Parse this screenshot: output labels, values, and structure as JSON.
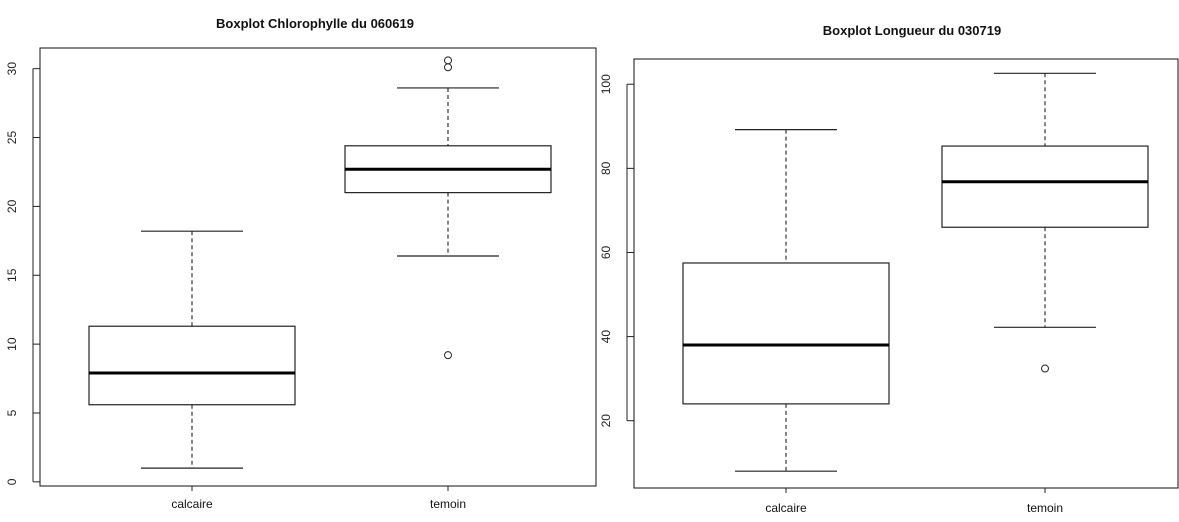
{
  "chart_data": [
    {
      "type": "boxplot",
      "title": "Boxplot Chlorophylle du 060619",
      "categories": [
        "calcaire",
        "temoin"
      ],
      "ylim": [
        -0.3,
        31.5
      ],
      "yticks": [
        0,
        5,
        10,
        15,
        20,
        25,
        30
      ],
      "boxes": [
        {
          "category": "calcaire",
          "whisker_low": 1.0,
          "q1": 5.6,
          "median": 7.9,
          "q3": 11.3,
          "whisker_high": 18.2,
          "outliers": []
        },
        {
          "category": "temoin",
          "whisker_low": 16.4,
          "q1": 21.0,
          "median": 22.7,
          "q3": 24.4,
          "whisker_high": 28.6,
          "outliers": [
            9.2,
            30.1,
            30.6
          ]
        }
      ],
      "grid": false
    },
    {
      "type": "boxplot",
      "title": "Boxplot Longueur du 030719",
      "categories": [
        "calcaire",
        "temoin"
      ],
      "ylim": [
        4,
        106
      ],
      "yticks": [
        20,
        40,
        60,
        80,
        100
      ],
      "boxes": [
        {
          "category": "calcaire",
          "whisker_low": 8.0,
          "q1": 24.0,
          "median": 38.0,
          "q3": 57.5,
          "whisker_high": 89.2,
          "outliers": []
        },
        {
          "category": "temoin",
          "whisker_low": 42.2,
          "q1": 66.0,
          "median": 76.8,
          "q3": 85.3,
          "whisker_high": 102.6,
          "outliers": [
            32.4
          ]
        }
      ],
      "grid": false
    }
  ],
  "colors": {
    "box_fill": "#ffffff",
    "stroke": "#222222",
    "whisker_dash": "#444444"
  }
}
